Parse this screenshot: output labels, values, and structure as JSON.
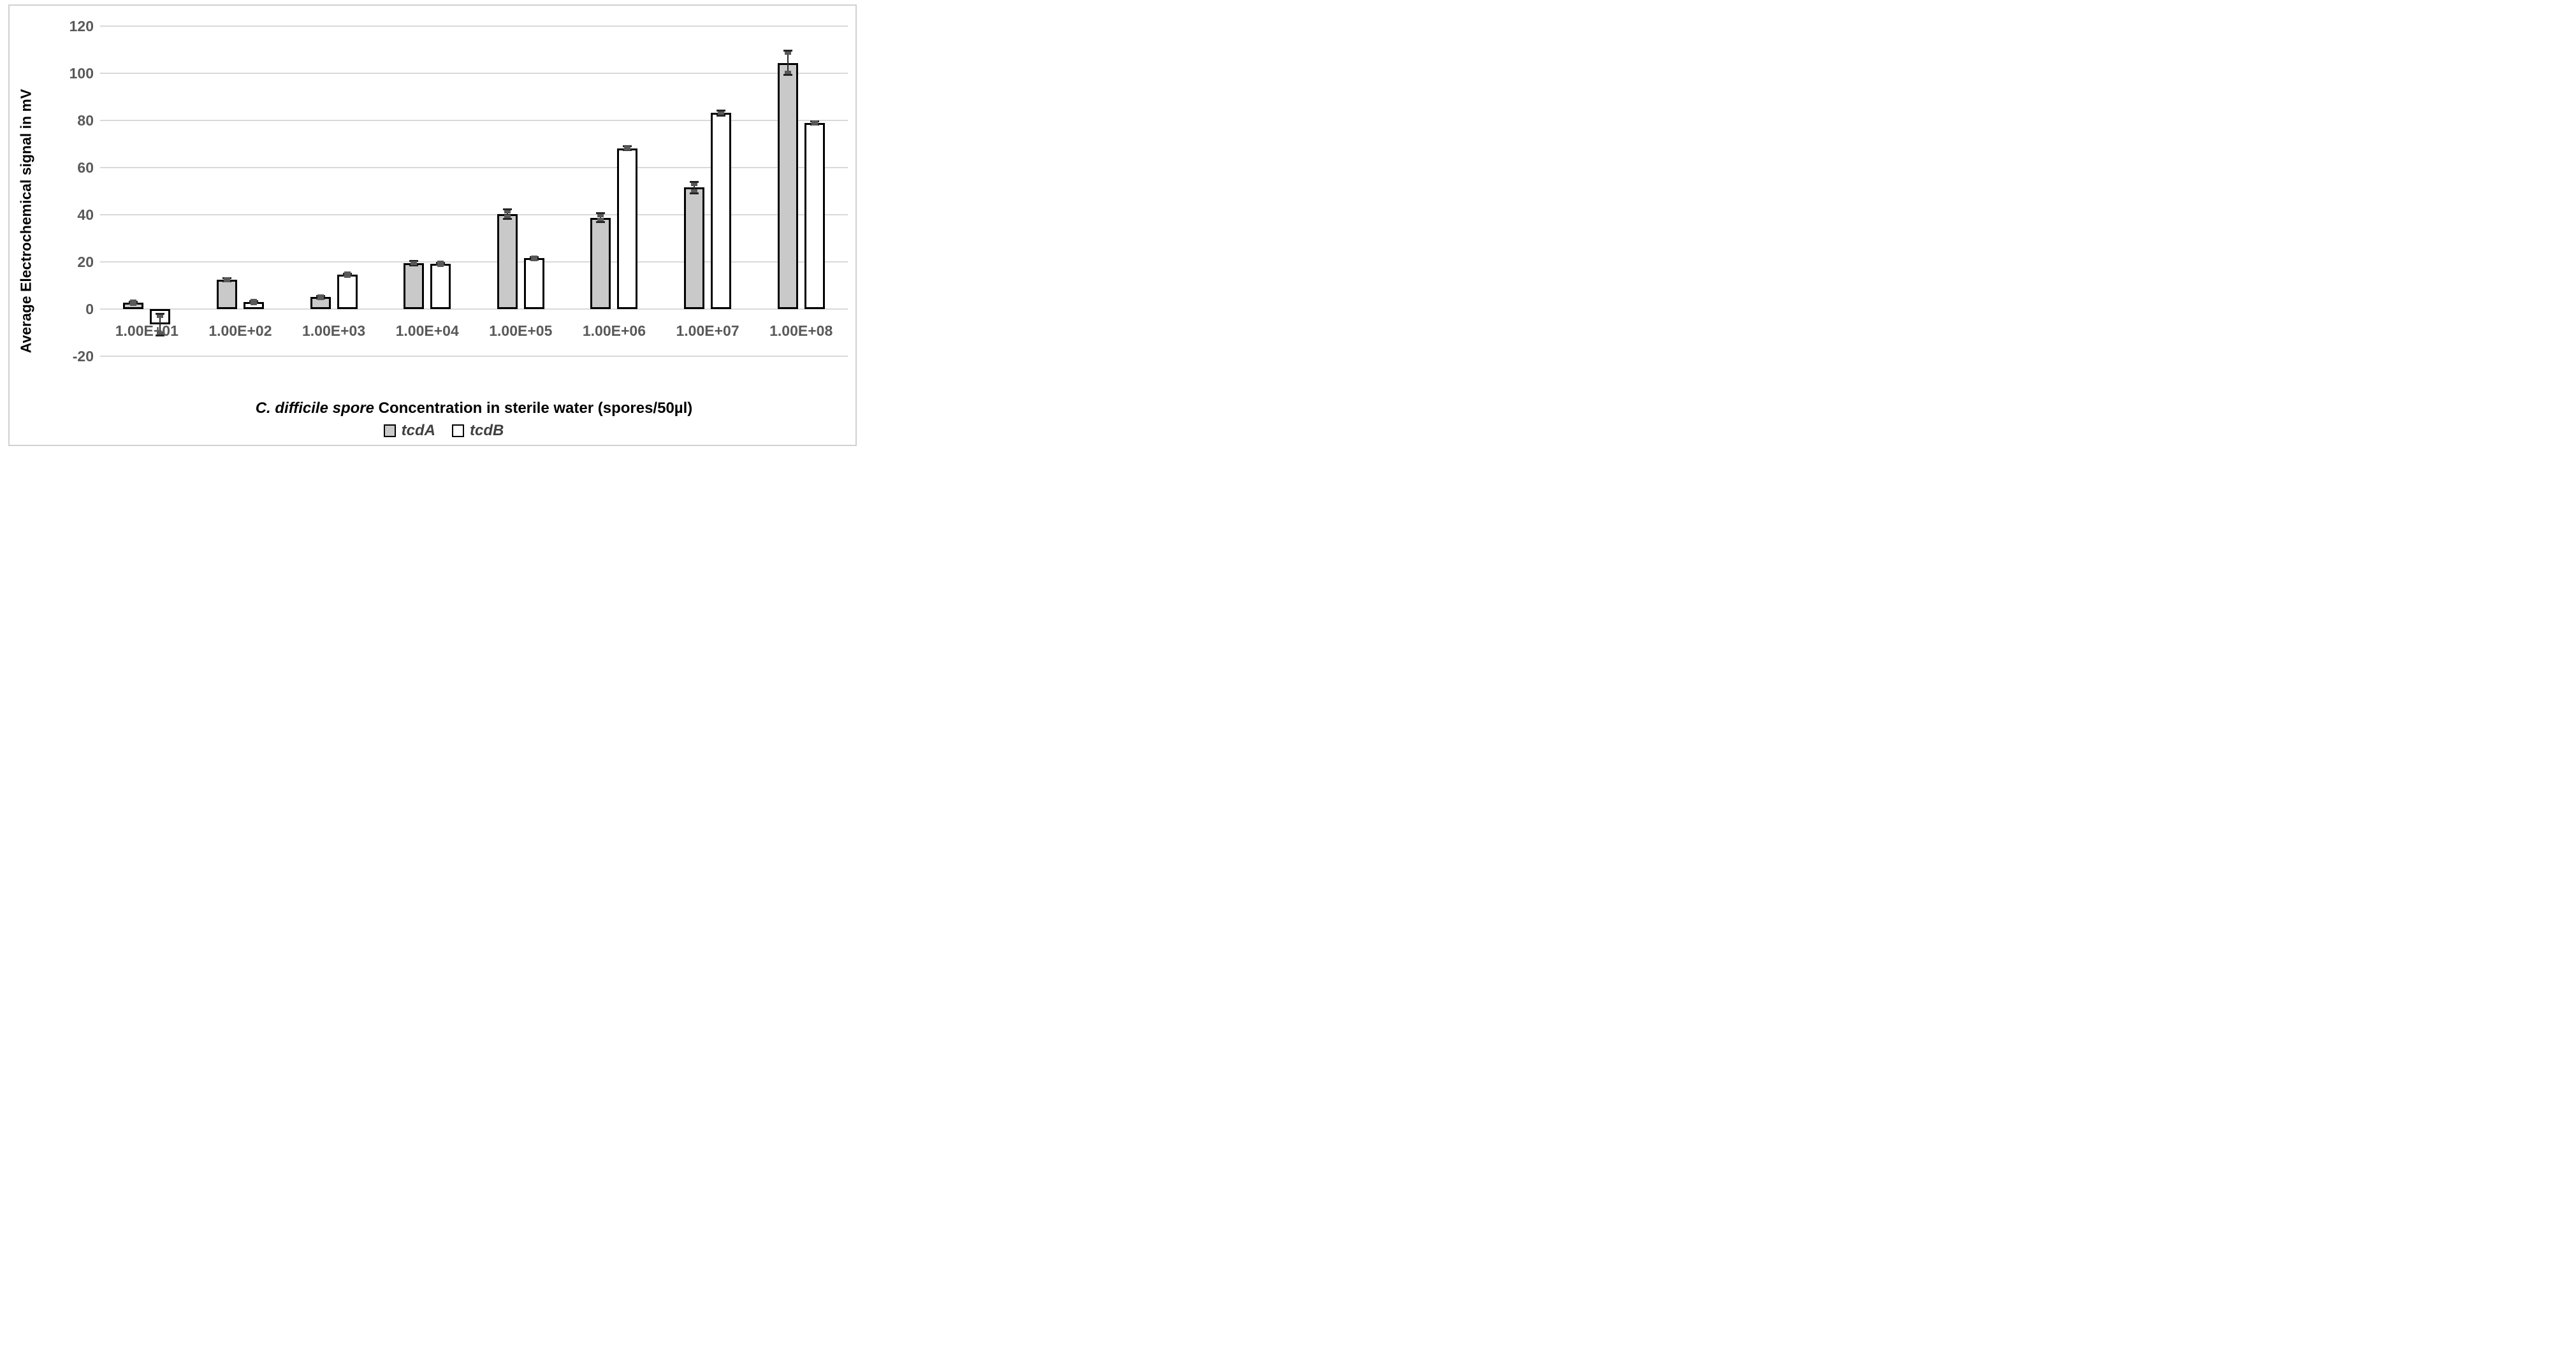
{
  "chart_data": {
    "type": "bar",
    "title": "",
    "ylabel": "Average Electrochemical signal in mV",
    "xlabel_italic": "C. difficile spore",
    "xlabel_rest": " Concentration in sterile water (spores/50µl)",
    "categories": [
      "1.00E+01",
      "1.00E+02",
      "1.00E+03",
      "1.00E+04",
      "1.00E+05",
      "1.00E+06",
      "1.00E+07",
      "1.00E+08"
    ],
    "y_ticks": [
      120,
      100,
      80,
      60,
      40,
      20,
      0,
      -20
    ],
    "ylim": [
      -20,
      120
    ],
    "grid": true,
    "legend_position": "bottom",
    "series": [
      {
        "name": "tcdA",
        "fill": "#C9C9C9",
        "border": "#000000",
        "values": [
          2.8,
          12.6,
          5.2,
          19.6,
          40.4,
          38.8,
          51.6,
          104.5
        ],
        "errors": [
          0.6,
          0.8,
          0.7,
          1.0,
          2.2,
          2.0,
          2.6,
          5.2
        ]
      },
      {
        "name": "tcdB",
        "fill": "#FFFFFF",
        "border": "#000000",
        "values": [
          -6.5,
          3.0,
          14.6,
          19.2,
          21.6,
          68.3,
          83.3,
          79.0
        ],
        "errors": [
          4.8,
          0.5,
          0.5,
          0.5,
          0.6,
          1.0,
          1.2,
          0.8
        ]
      }
    ],
    "colors": {
      "gridline": "#D9D9D9",
      "axis_text": "#595959",
      "error_bar": "#262626",
      "error_marker": "#595959",
      "frame_border": "#D0D0D0"
    }
  }
}
